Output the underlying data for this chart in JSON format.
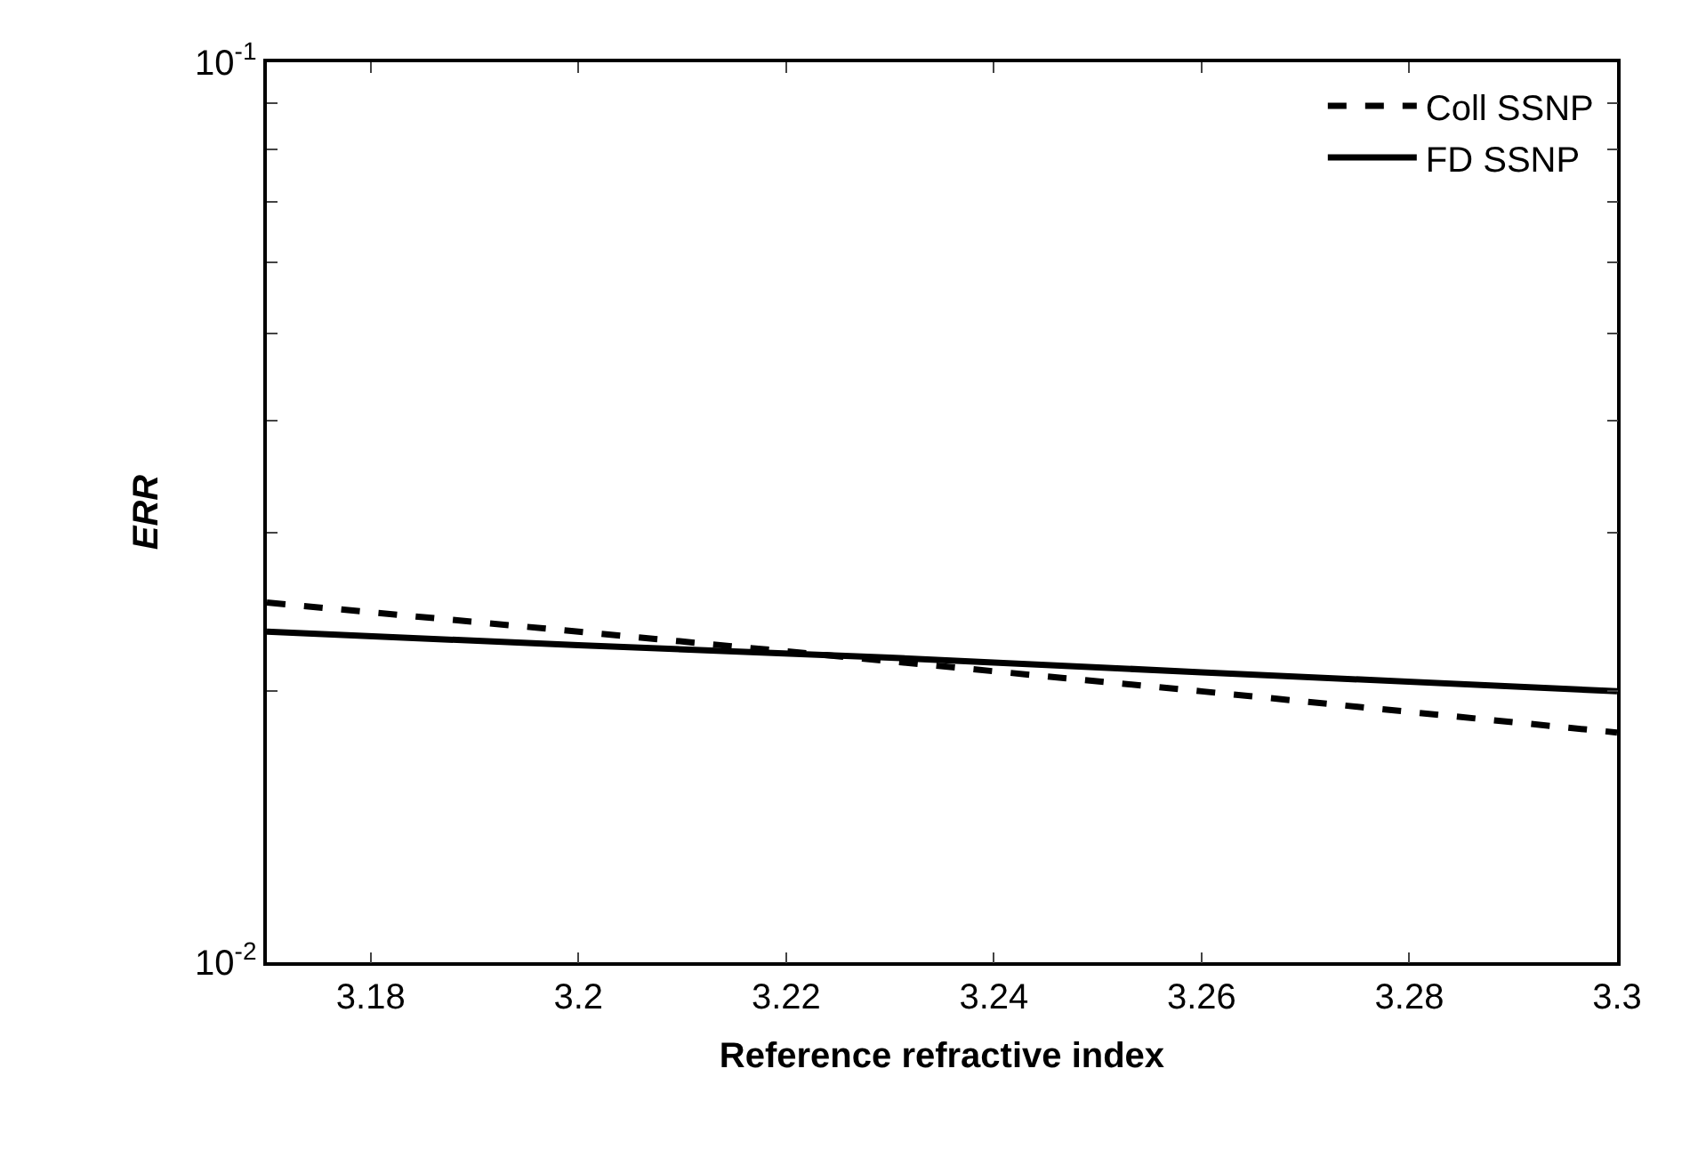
{
  "chart_data": {
    "type": "line",
    "xlabel": "Reference refractive index",
    "ylabel": "ERR",
    "x": [
      3.17,
      3.2,
      3.23,
      3.26,
      3.3
    ],
    "series": [
      {
        "name": "Coll SSNP",
        "color": "#000000",
        "line_style": "dashed",
        "values": [
          0.0251,
          0.0233,
          0.0216,
          0.02,
          0.018
        ]
      },
      {
        "name": "FD SSNP",
        "color": "#000000",
        "line_style": "solid",
        "values": [
          0.0233,
          0.0225,
          0.0218,
          0.021,
          0.02
        ]
      }
    ],
    "log": "y",
    "xlim": [
      3.17,
      3.3
    ],
    "xticks": [
      3.18,
      3.2,
      3.22,
      3.24,
      3.26,
      3.28,
      3.3
    ],
    "ylim": [
      0.01,
      0.1
    ],
    "yticks": [
      {
        "value": 0.01,
        "label": "10$^{-2}$"
      },
      {
        "value": 0.02,
        "label": null
      },
      {
        "value": 0.03,
        "label": null
      },
      {
        "value": 0.04,
        "label": null
      },
      {
        "value": 0.05,
        "label": null
      },
      {
        "value": 0.06,
        "label": null
      },
      {
        "value": 0.07,
        "label": null
      },
      {
        "value": 0.08,
        "label": null
      },
      {
        "value": 0.09,
        "label": null
      },
      {
        "value": 0.1,
        "label": "10$^{-1}$"
      }
    ],
    "legend": "top right",
    "marker": "none"
  }
}
